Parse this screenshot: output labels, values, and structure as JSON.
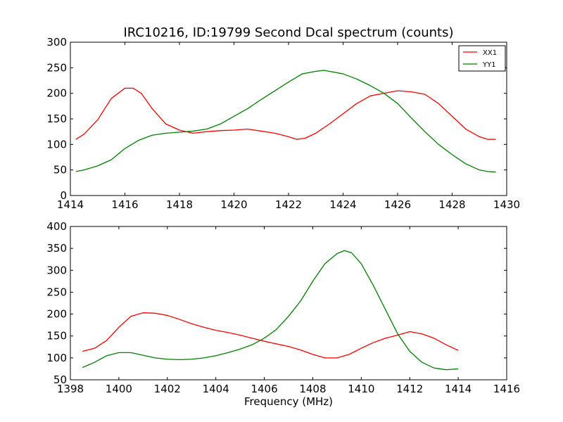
{
  "figure": {
    "title": "IRC10216, ID:19799 Second Dcal spectrum (counts)",
    "xlabel": "Frequency (MHz)"
  },
  "chart_data": [
    {
      "type": "line",
      "title": "IRC10216, ID:19799 Second Dcal spectrum (counts)",
      "xlabel": "",
      "ylabel": "",
      "xlim": [
        1414,
        1430
      ],
      "ylim": [
        0,
        300
      ],
      "xticks": [
        1414,
        1416,
        1418,
        1420,
        1422,
        1424,
        1426,
        1428,
        1430
      ],
      "yticks": [
        0,
        50,
        100,
        150,
        200,
        250,
        300
      ],
      "grid": false,
      "legend": {
        "placement": "top-right",
        "entries": [
          "XX1",
          "YY1"
        ]
      },
      "series": [
        {
          "name": "XX1",
          "color": "#ff0000",
          "x": [
            1414.2,
            1414.5,
            1415.0,
            1415.5,
            1416.0,
            1416.3,
            1416.6,
            1417.0,
            1417.5,
            1418.0,
            1418.5,
            1419.0,
            1419.5,
            1420.0,
            1420.5,
            1421.0,
            1421.5,
            1422.0,
            1422.3,
            1422.6,
            1423.0,
            1423.5,
            1424.0,
            1424.5,
            1425.0,
            1425.5,
            1426.0,
            1426.5,
            1427.0,
            1427.5,
            1428.0,
            1428.5,
            1429.0,
            1429.3,
            1429.6
          ],
          "y": [
            110,
            120,
            148,
            190,
            210,
            210,
            200,
            170,
            140,
            128,
            122,
            125,
            127,
            128,
            130,
            126,
            122,
            115,
            110,
            112,
            122,
            140,
            160,
            180,
            195,
            200,
            205,
            203,
            198,
            180,
            155,
            130,
            115,
            110,
            110
          ]
        },
        {
          "name": "YY1",
          "color": "#007f00",
          "x": [
            1414.2,
            1414.5,
            1415.0,
            1415.5,
            1416.0,
            1416.5,
            1417.0,
            1417.5,
            1418.0,
            1418.5,
            1419.0,
            1419.5,
            1420.0,
            1420.5,
            1421.0,
            1421.5,
            1422.0,
            1422.5,
            1423.0,
            1423.3,
            1423.6,
            1424.0,
            1424.5,
            1425.0,
            1425.5,
            1426.0,
            1426.5,
            1427.0,
            1427.5,
            1428.0,
            1428.5,
            1429.0,
            1429.3,
            1429.6
          ],
          "y": [
            47,
            50,
            58,
            70,
            92,
            108,
            118,
            122,
            124,
            126,
            130,
            140,
            155,
            170,
            188,
            205,
            222,
            238,
            243,
            245,
            242,
            238,
            228,
            215,
            200,
            180,
            152,
            125,
            100,
            80,
            62,
            50,
            47,
            46
          ]
        }
      ]
    },
    {
      "type": "line",
      "title": "",
      "xlabel": "Frequency (MHz)",
      "ylabel": "",
      "xlim": [
        1398,
        1416
      ],
      "ylim": [
        50,
        400
      ],
      "xticks": [
        1398,
        1400,
        1402,
        1404,
        1406,
        1408,
        1410,
        1412,
        1414,
        1416
      ],
      "yticks": [
        50,
        100,
        150,
        200,
        250,
        300,
        350,
        400
      ],
      "grid": false,
      "series": [
        {
          "color": "#ff0000",
          "x": [
            1398.5,
            1399.0,
            1399.5,
            1400.0,
            1400.5,
            1401.0,
            1401.5,
            1402.0,
            1402.5,
            1403.0,
            1403.5,
            1404.0,
            1404.5,
            1405.0,
            1405.5,
            1406.0,
            1406.5,
            1407.0,
            1407.5,
            1408.0,
            1408.5,
            1409.0,
            1409.5,
            1410.0,
            1410.5,
            1411.0,
            1411.5,
            1412.0,
            1412.5,
            1413.0,
            1413.5,
            1414.0
          ],
          "y": [
            115,
            122,
            140,
            170,
            195,
            203,
            202,
            197,
            188,
            178,
            170,
            163,
            158,
            152,
            145,
            138,
            132,
            126,
            118,
            108,
            100,
            100,
            108,
            122,
            135,
            145,
            152,
            160,
            155,
            145,
            130,
            117
          ]
        },
        {
          "color": "#007f00",
          "x": [
            1398.5,
            1399.0,
            1399.5,
            1400.0,
            1400.5,
            1401.0,
            1401.5,
            1402.0,
            1402.5,
            1403.0,
            1403.5,
            1404.0,
            1404.5,
            1405.0,
            1405.5,
            1406.0,
            1406.5,
            1407.0,
            1407.5,
            1408.0,
            1408.5,
            1409.0,
            1409.3,
            1409.6,
            1410.0,
            1410.5,
            1411.0,
            1411.5,
            1412.0,
            1412.5,
            1413.0,
            1413.5,
            1414.0
          ],
          "y": [
            78,
            90,
            105,
            112,
            112,
            106,
            100,
            97,
            96,
            97,
            100,
            105,
            112,
            120,
            130,
            145,
            165,
            195,
            230,
            275,
            315,
            338,
            345,
            340,
            315,
            265,
            210,
            155,
            115,
            90,
            77,
            73,
            75
          ]
        }
      ]
    }
  ]
}
